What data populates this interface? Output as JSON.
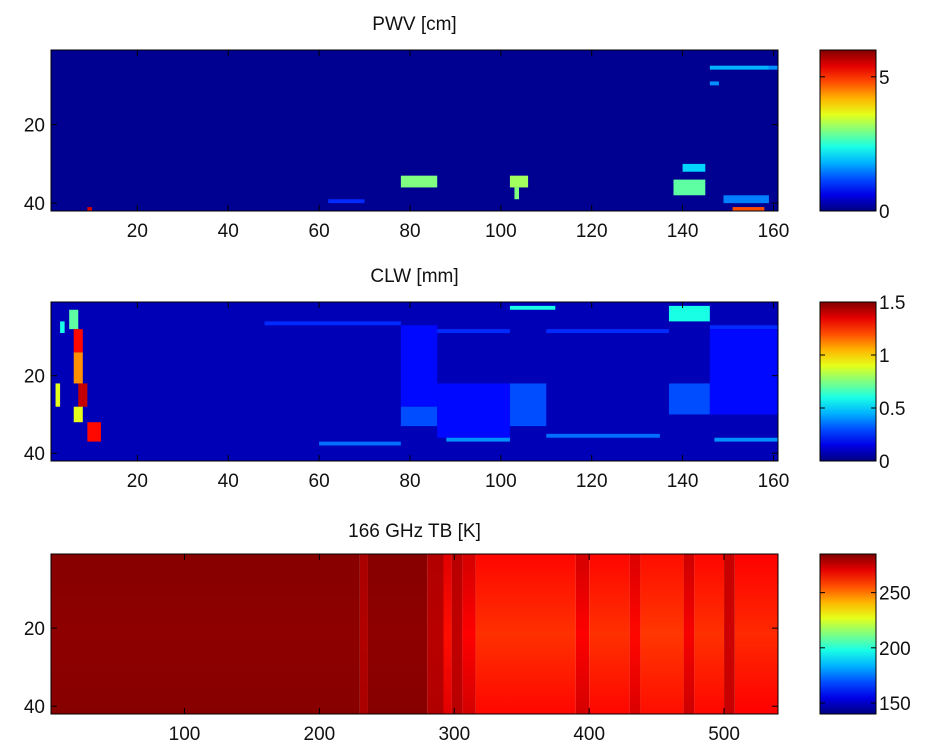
{
  "colors": {
    "axis": "#000000",
    "background": "#ffffff",
    "colormap": "jet"
  },
  "chart_data": [
    {
      "type": "heatmap",
      "title": "PWV [cm]",
      "xlim": [
        1,
        161
      ],
      "ylim": [
        1,
        42
      ],
      "y_reversed": true,
      "xticks": [
        20,
        40,
        60,
        80,
        100,
        120,
        140,
        160
      ],
      "yticks": [
        20,
        40
      ],
      "colorbar": {
        "clim": [
          0,
          6
        ],
        "ticks": [
          0,
          5
        ]
      },
      "background_value": 0.1,
      "patches": [
        {
          "x": [
            78,
            86
          ],
          "y": [
            33,
            36
          ],
          "value": 3.0
        },
        {
          "x": [
            102,
            106
          ],
          "y": [
            33,
            36
          ],
          "value": 3.2
        },
        {
          "x": [
            103,
            104
          ],
          "y": [
            36,
            39
          ],
          "value": 3.0
        },
        {
          "x": [
            138,
            145
          ],
          "y": [
            34,
            38
          ],
          "value": 2.8
        },
        {
          "x": [
            140,
            145
          ],
          "y": [
            30,
            32
          ],
          "value": 2.0
        },
        {
          "x": [
            149,
            159
          ],
          "y": [
            38,
            40
          ],
          "value": 1.5
        },
        {
          "x": [
            151,
            158
          ],
          "y": [
            41,
            42
          ],
          "value": 4.8
        },
        {
          "x": [
            146,
            159
          ],
          "y": [
            5,
            6
          ],
          "value": 1.8
        },
        {
          "x": [
            146,
            148
          ],
          "y": [
            9,
            10
          ],
          "value": 1.6
        },
        {
          "x": [
            159,
            161
          ],
          "y": [
            5,
            6
          ],
          "value": 1.6
        },
        {
          "x": [
            62,
            70
          ],
          "y": [
            39,
            40
          ],
          "value": 1.0
        },
        {
          "x": [
            9,
            10
          ],
          "y": [
            41,
            42
          ],
          "value": 5.5
        }
      ]
    },
    {
      "type": "heatmap",
      "title": "CLW [mm]",
      "xlim": [
        1,
        161
      ],
      "ylim": [
        1,
        42
      ],
      "y_reversed": true,
      "xticks": [
        20,
        40,
        60,
        80,
        100,
        120,
        140,
        160
      ],
      "yticks": [
        20,
        40
      ],
      "colorbar": {
        "clim": [
          0,
          1.5
        ],
        "ticks": [
          0,
          0.5,
          1,
          1.5
        ]
      },
      "background_value": 0.08,
      "patches": [
        {
          "x": [
            48,
            78
          ],
          "y": [
            6,
            7
          ],
          "value": 0.25
        },
        {
          "x": [
            78,
            86
          ],
          "y": [
            7,
            28
          ],
          "value": 0.2
        },
        {
          "x": [
            78,
            86
          ],
          "y": [
            28,
            33
          ],
          "value": 0.3
        },
        {
          "x": [
            86,
            102
          ],
          "y": [
            8,
            9
          ],
          "value": 0.25
        },
        {
          "x": [
            86,
            102
          ],
          "y": [
            22,
            36
          ],
          "value": 0.2
        },
        {
          "x": [
            102,
            110
          ],
          "y": [
            22,
            33
          ],
          "value": 0.3
        },
        {
          "x": [
            102,
            112
          ],
          "y": [
            2,
            3
          ],
          "value": 0.6
        },
        {
          "x": [
            110,
            137
          ],
          "y": [
            8,
            9
          ],
          "value": 0.25
        },
        {
          "x": [
            137,
            146
          ],
          "y": [
            2,
            6
          ],
          "value": 0.6
        },
        {
          "x": [
            137,
            146
          ],
          "y": [
            22,
            30
          ],
          "value": 0.3
        },
        {
          "x": [
            146,
            161
          ],
          "y": [
            7,
            8
          ],
          "value": 0.25
        },
        {
          "x": [
            146,
            161
          ],
          "y": [
            8,
            30
          ],
          "value": 0.2
        },
        {
          "x": [
            60,
            78
          ],
          "y": [
            37,
            38
          ],
          "value": 0.35
        },
        {
          "x": [
            88,
            102
          ],
          "y": [
            36,
            37
          ],
          "value": 0.4
        },
        {
          "x": [
            110,
            135
          ],
          "y": [
            35,
            36
          ],
          "value": 0.35
        },
        {
          "x": [
            147,
            161
          ],
          "y": [
            36,
            37
          ],
          "value": 0.4
        },
        {
          "x": [
            2,
            3
          ],
          "y": [
            22,
            28
          ],
          "value": 0.9
        },
        {
          "x": [
            5,
            7
          ],
          "y": [
            3,
            8
          ],
          "value": 0.7
        },
        {
          "x": [
            6,
            8
          ],
          "y": [
            8,
            14
          ],
          "value": 1.3
        },
        {
          "x": [
            6,
            8
          ],
          "y": [
            14,
            22
          ],
          "value": 1.1
        },
        {
          "x": [
            7,
            9
          ],
          "y": [
            22,
            28
          ],
          "value": 1.4
        },
        {
          "x": [
            6,
            8
          ],
          "y": [
            28,
            32
          ],
          "value": 0.9
        },
        {
          "x": [
            9,
            12
          ],
          "y": [
            32,
            37
          ],
          "value": 1.3
        },
        {
          "x": [
            3,
            4
          ],
          "y": [
            6,
            9
          ],
          "value": 0.6
        }
      ]
    },
    {
      "type": "heatmap",
      "title": "166 GHz TB [K]",
      "xlim": [
        1,
        540
      ],
      "ylim": [
        1,
        42
      ],
      "y_reversed": true,
      "xticks": [
        100,
        200,
        300,
        400,
        500
      ],
      "yticks": [
        20,
        40
      ],
      "colorbar": {
        "clim": [
          140,
          285
        ],
        "ticks": [
          150,
          200,
          250
        ]
      },
      "column_bands": [
        {
          "x": [
            1,
            230
          ],
          "value": 284
        },
        {
          "x": [
            230,
            236
          ],
          "value": 279
        },
        {
          "x": [
            236,
            280
          ],
          "value": 284
        },
        {
          "x": [
            280,
            292
          ],
          "value": 278
        },
        {
          "x": [
            292,
            298
          ],
          "value": 271
        },
        {
          "x": [
            298,
            306
          ],
          "value": 277
        },
        {
          "x": [
            306,
            316
          ],
          "value": 273
        },
        {
          "x": [
            316,
            390
          ],
          "value": 266
        },
        {
          "x": [
            390,
            400
          ],
          "value": 273
        },
        {
          "x": [
            400,
            430
          ],
          "value": 266
        },
        {
          "x": [
            430,
            438
          ],
          "value": 272
        },
        {
          "x": [
            438,
            470
          ],
          "value": 265
        },
        {
          "x": [
            470,
            478
          ],
          "value": 274
        },
        {
          "x": [
            478,
            500
          ],
          "value": 266
        },
        {
          "x": [
            500,
            508
          ],
          "value": 275
        },
        {
          "x": [
            508,
            540
          ],
          "value": 267
        }
      ]
    }
  ]
}
